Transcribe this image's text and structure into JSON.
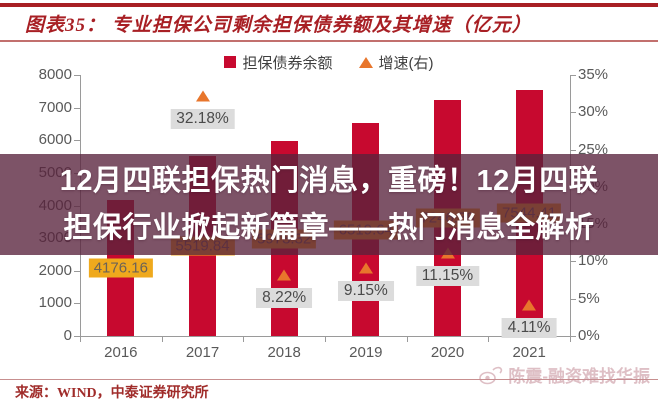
{
  "header": {
    "figure_title": "图表35：  专业担保公司剩余担保债券额及其增速（亿元）",
    "accent_color": "#a81f24"
  },
  "legend": {
    "items": [
      {
        "label": "担保债券余额",
        "marker": "square",
        "color": "#c7092f"
      },
      {
        "label": "增速(右)",
        "marker": "triangle",
        "color": "#e8762c"
      }
    ]
  },
  "overlay_banner": {
    "line1": "12月四联担保热门消息，重磅！12月四联",
    "line2": "担保行业掀起新篇章——热门消息全解析",
    "background": "rgba(88,35,60,0.78)",
    "text_color": "#ffffff"
  },
  "footer": {
    "source_note": "来源：WIND，中泰证券研究所",
    "watermark_text": "陈震-融资难找华振"
  },
  "chart_data": {
    "type": "bar",
    "title": "专业担保公司剩余担保债券额及其增速（亿元）",
    "categories": [
      "2016",
      "2017",
      "2018",
      "2019",
      "2020",
      "2021"
    ],
    "series": [
      {
        "name": "担保债券余额",
        "type": "bar",
        "axis": "left",
        "color": "#c7092f",
        "values": [
          4176.16,
          5519.84,
          5973.32,
          6519.64,
          7246.58,
          7544.41
        ],
        "labels": [
          "4176.16",
          "5519.84",
          "5973.32",
          "6519.64",
          "7246.58",
          "7544.41"
        ],
        "label_bg": "#efa91d",
        "label_color": "#6b6257"
      },
      {
        "name": "增速(右)",
        "type": "scatter",
        "marker": "triangle",
        "axis": "right",
        "color": "#e8762c",
        "values": [
          null,
          32.18,
          8.22,
          9.15,
          11.15,
          4.11
        ],
        "labels": [
          "",
          "32.18%",
          "8.22%",
          "9.15%",
          "11.15%",
          "4.11%"
        ],
        "label_bg": "#dcdcdc",
        "label_color": "#4a4a4a"
      }
    ],
    "left_axis": {
      "min": 0,
      "max": 8000,
      "tick_step": 1000,
      "ticks": [
        "8000",
        "7000",
        "6000",
        "5000",
        "4000",
        "3000",
        "2000",
        "1000",
        "0"
      ]
    },
    "right_axis": {
      "min": 0,
      "max": 35,
      "tick_step": 5,
      "ticks": [
        "35%",
        "30%",
        "25%",
        "20%",
        "15%",
        "10%",
        "5%",
        "0%"
      ]
    },
    "grid": false,
    "legend_position": "top"
  }
}
